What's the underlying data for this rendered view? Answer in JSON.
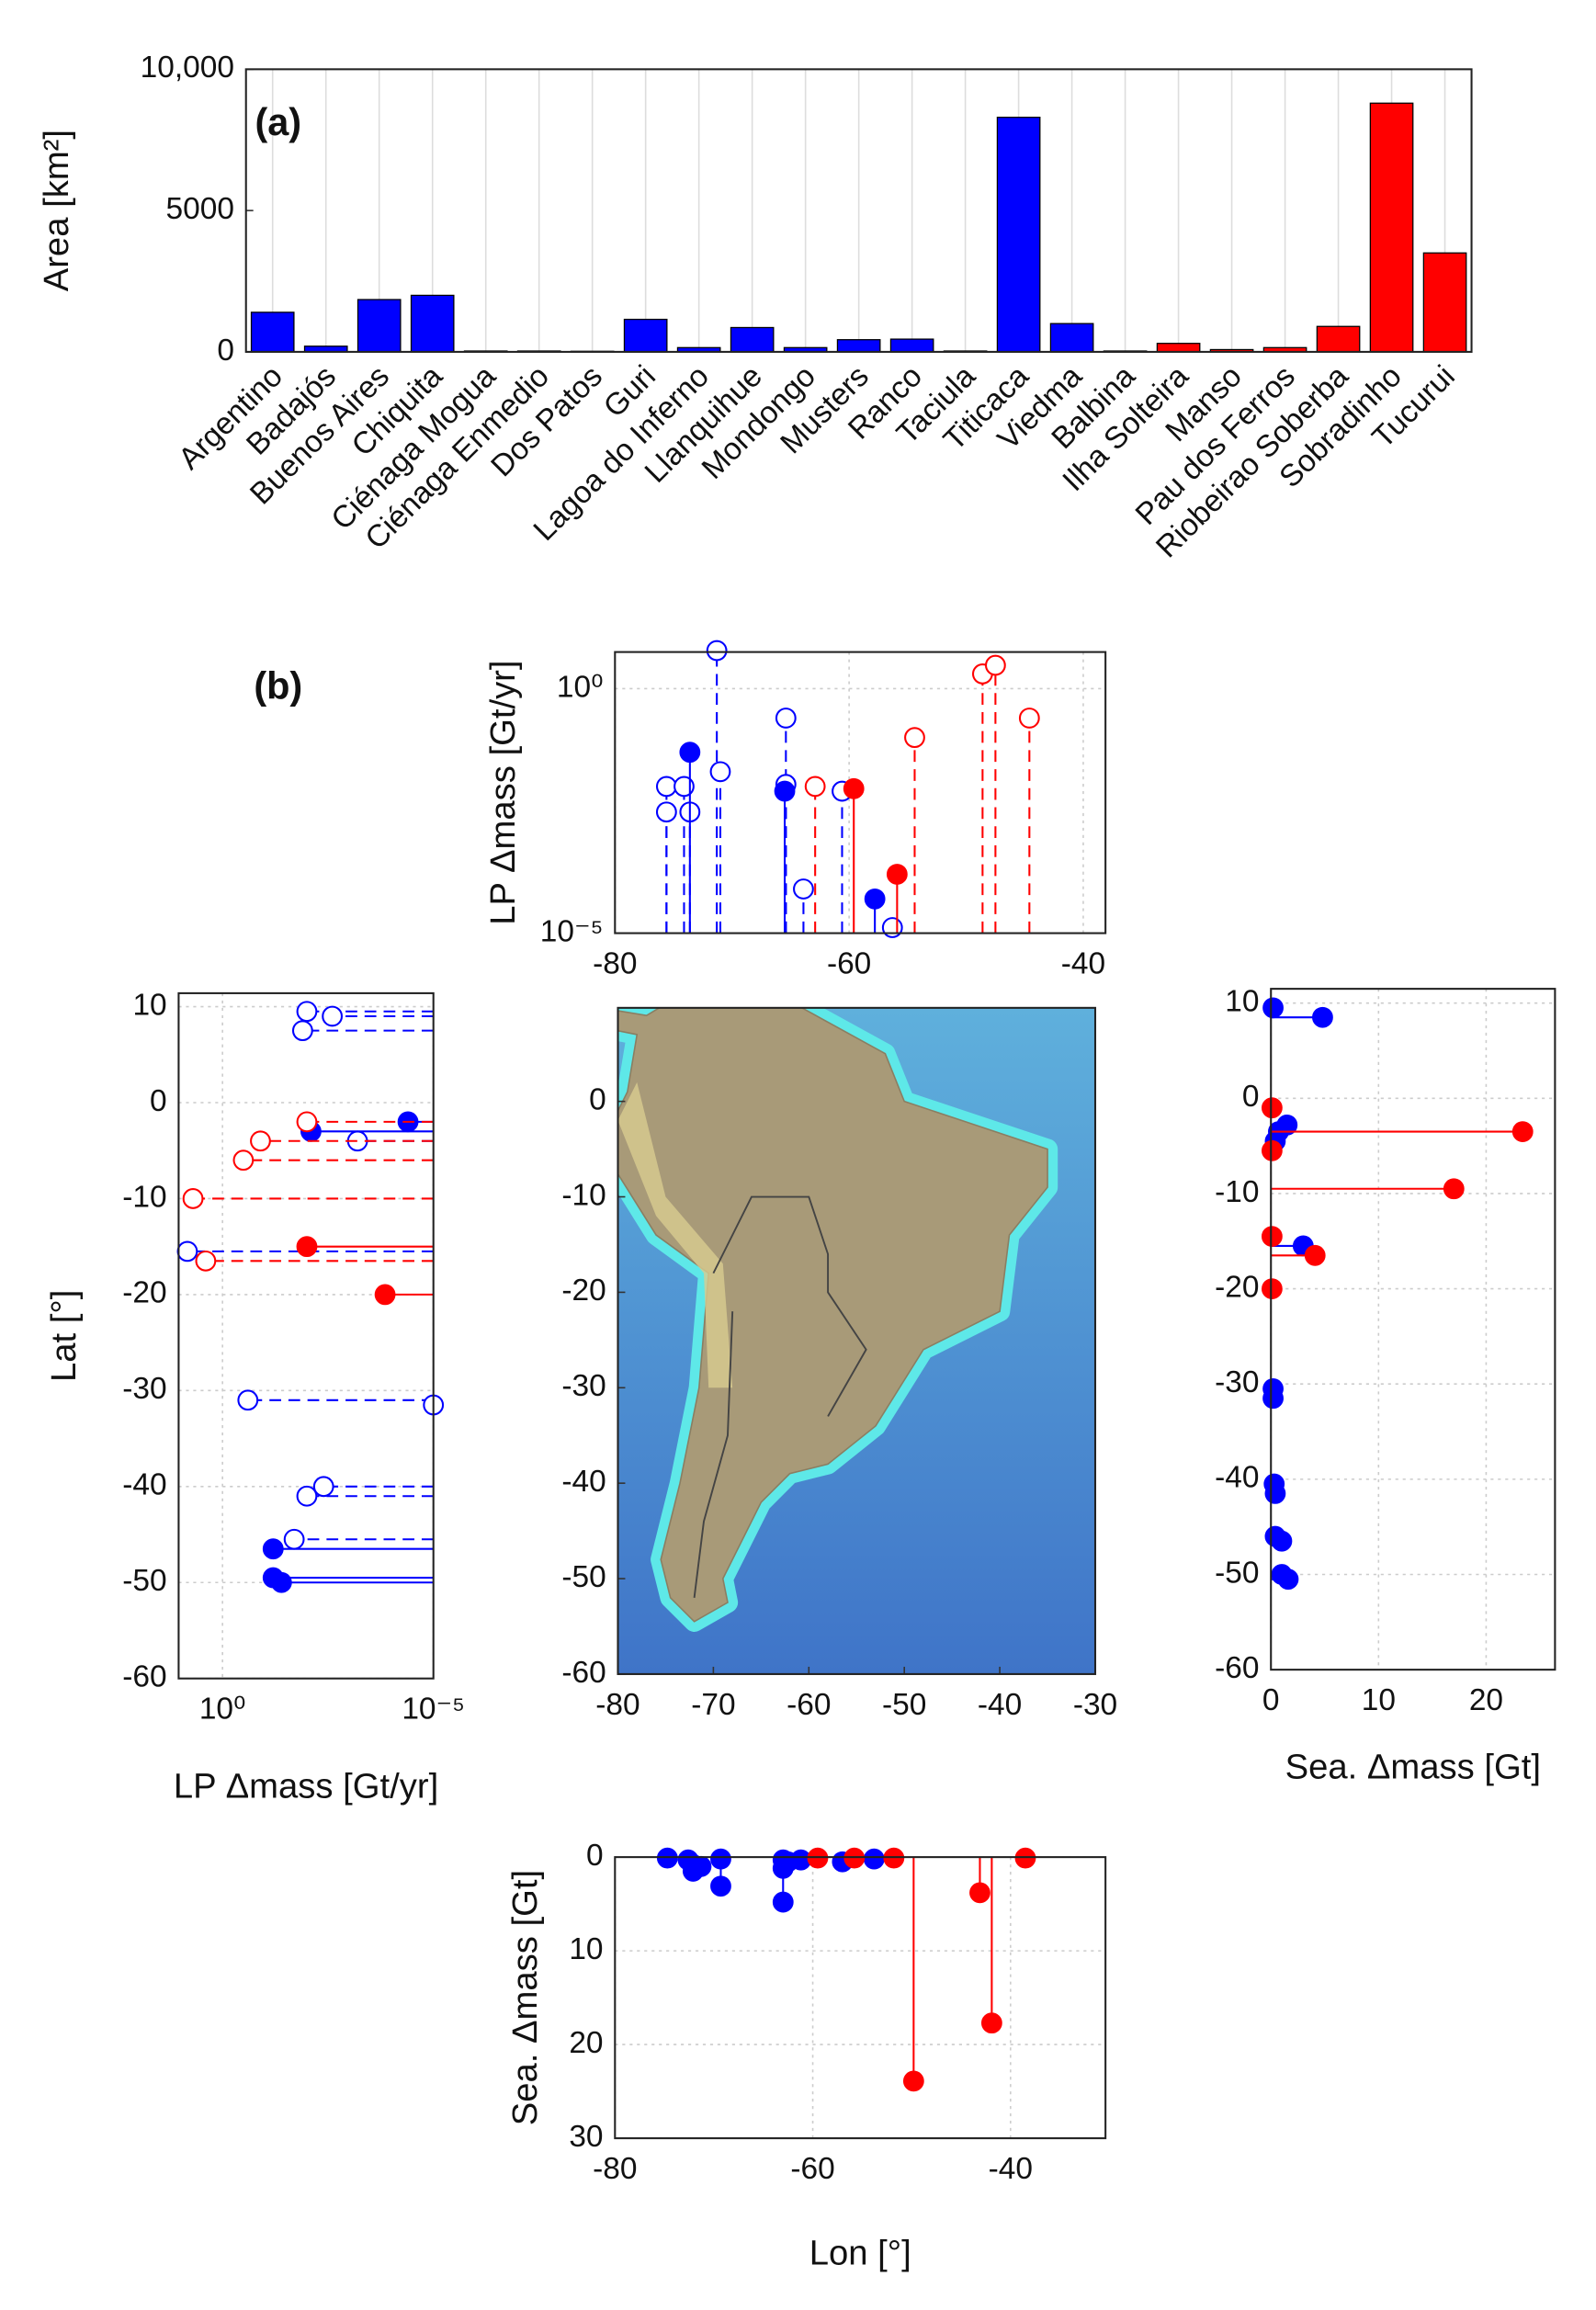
{
  "chart_data": [
    {
      "type": "bar",
      "panel": "(a)",
      "ylabel": "Area [km²]",
      "categories": [
        "Argentino",
        "Badajós",
        "Buenos Aires",
        "Chiquita",
        "Ciénaga Mogua",
        "Ciénaga Enmedio",
        "Dos Patos",
        "Guri",
        "Lagoa do Inferno",
        "Llanquihue",
        "Mondongo",
        "Musters",
        "Ranco",
        "Taciula",
        "Titicaca",
        "Viedma",
        "Balbina",
        "Ilha Solteira",
        "Manso",
        "Pau dos Ferros",
        "Riobeirao Soberba",
        "Sobradinho",
        "Tucurui"
      ],
      "values": [
        1400,
        200,
        1850,
        2000,
        30,
        30,
        20,
        1150,
        150,
        860,
        150,
        430,
        450,
        30,
        8300,
        1000,
        30,
        300,
        80,
        150,
        900,
        8800,
        3500
      ],
      "colors": [
        "#0000ff",
        "#0000ff",
        "#0000ff",
        "#0000ff",
        "#0000ff",
        "#0000ff",
        "#0000ff",
        "#0000ff",
        "#0000ff",
        "#0000ff",
        "#0000ff",
        "#0000ff",
        "#0000ff",
        "#0000ff",
        "#0000ff",
        "#0000ff",
        "#ff0000",
        "#ff0000",
        "#ff0000",
        "#ff0000",
        "#ff0000",
        "#ff0000",
        "#ff0000"
      ],
      "ylim": [
        0,
        10000
      ],
      "yticks": [
        0,
        5000,
        {
          "value": 10000,
          "label": "10,000"
        }
      ],
      "grid": true
    },
    {
      "type": "stem",
      "orientation": "vertical",
      "panel": "(b)",
      "ylabel": "LP Δmass [Gt/yr]",
      "ylog": true,
      "xlim": [
        -80,
        -38.1
      ],
      "xticks": [
        -80,
        -60,
        -40
      ],
      "ylim": [
        1e-05,
        5.6
      ],
      "yticks": [
        {
          "value": 1,
          "label": "10⁰"
        },
        {
          "value": 1e-05,
          "label": "10⁻⁵"
        }
      ],
      "grid": true,
      "series": [
        {
          "color": "#0000ff",
          "marker": "open",
          "x": [
            -75.6,
            -75.6,
            -74.1,
            -73.6,
            -71.3,
            -71,
            -65.4,
            -65.4,
            -63.9,
            -60.6,
            -56.3
          ],
          "values": [
            0.01,
            0.003,
            0.01,
            0.003,
            6,
            0.02,
            0.25,
            0.011,
            8e-05,
            0.008,
            1.3e-05
          ]
        },
        {
          "color": "#0000ff",
          "marker": "filled",
          "x": [
            -73.6,
            -65.5,
            -57.8
          ],
          "values": [
            0.05,
            0.008,
            5e-05
          ]
        },
        {
          "color": "#ff0000",
          "marker": "open",
          "x": [
            -62.9,
            -54.4,
            -48.6,
            -47.5,
            -44.6
          ],
          "values": [
            0.01,
            0.1,
            2,
            3,
            0.25
          ]
        },
        {
          "color": "#ff0000",
          "marker": "filled",
          "x": [
            -59.6,
            -55.9
          ],
          "values": [
            0.009,
            0.00016
          ]
        }
      ]
    },
    {
      "type": "stem",
      "orientation": "horizontal",
      "xlabel": "LP Δmass [Gt/yr]",
      "ylabel": "Lat [°]",
      "xlog": true,
      "xlim": [
        10.96,
        1e-05
      ],
      "xticks": [
        {
          "value": 1,
          "label": "10⁰"
        },
        {
          "value": 1e-05,
          "label": "10⁻⁵"
        }
      ],
      "ylim": [
        -60,
        11.4
      ],
      "yticks": [
        10,
        0,
        -10,
        -20,
        -30,
        -40,
        -50,
        -60
      ],
      "grid": true,
      "series": [
        {
          "color": "#0000ff",
          "marker": "open",
          "y": [
            9.5,
            7.5,
            9,
            -4,
            -15.5,
            -31,
            -31.5,
            -41,
            -40,
            -45.5
          ],
          "values": [
            0.01,
            0.0126,
            0.0025,
            0.00063,
            6.8,
            0.25,
            1e-05,
            0.01,
            0.004,
            0.02
          ]
        },
        {
          "color": "#0000ff",
          "marker": "filled",
          "y": [
            -2,
            -3,
            -46.5,
            -49.5,
            -50
          ],
          "values": [
            4e-05,
            0.008,
            0.063,
            0.063,
            0.04
          ]
        },
        {
          "color": "#ff0000",
          "marker": "open",
          "y": [
            -2,
            -4,
            -6,
            -10,
            -16.5
          ],
          "values": [
            0.01,
            0.126,
            0.32,
            5,
            2.5
          ]
        },
        {
          "color": "#ff0000",
          "marker": "filled",
          "y": [
            -15,
            -20
          ],
          "values": [
            0.01,
            0.00014
          ]
        }
      ]
    },
    {
      "type": "map",
      "xlim": [
        -80,
        -30
      ],
      "xticks": [
        -80,
        -70,
        -60,
        -50,
        -40,
        -30
      ],
      "ylim": [
        -60,
        9.8
      ],
      "yticks": [
        0,
        -10,
        -20,
        -30,
        -40,
        -50,
        -60
      ]
    },
    {
      "type": "stem",
      "orientation": "horizontal",
      "xlabel": "Sea. Δmass [Gt]",
      "xlim": [
        0,
        26.4
      ],
      "xticks": [
        0,
        10,
        20
      ],
      "ylim": [
        -60,
        11.5
      ],
      "yticks": [
        10,
        0,
        -10,
        -20,
        -30,
        -40,
        -50,
        -60
      ],
      "grid": true,
      "series": [
        {
          "color": "#0000ff",
          "marker": "filled",
          "y": [
            9.5,
            8.5,
            -3.5,
            -2.8,
            -4.5,
            -15.5,
            -30.5,
            -31.5,
            -40.5,
            -41.5,
            -46,
            -46.5,
            -50,
            -50.5
          ],
          "values": [
            0.2,
            4.8,
            0.7,
            1.5,
            0.4,
            3,
            0.2,
            0.2,
            0.3,
            0.4,
            0.4,
            1,
            1,
            1.6
          ]
        },
        {
          "color": "#ff0000",
          "marker": "filled",
          "y": [
            -1,
            -3.5,
            -5.5,
            -9.5,
            -14.5,
            -16.5,
            -20
          ],
          "values": [
            0.1,
            23.4,
            0.1,
            17,
            0.1,
            4.1,
            0.1
          ]
        }
      ]
    },
    {
      "type": "stem",
      "orientation": "vertical",
      "xlabel": "Lon [°]",
      "ylabel": "Sea. Δmass [Gt]",
      "xlim": [
        -80,
        -30.4
      ],
      "xticks": [
        -80,
        -60,
        -40
      ],
      "ylim": [
        30,
        0
      ],
      "yticks": [
        0,
        10,
        20,
        30
      ],
      "grid": true,
      "series": [
        {
          "color": "#0000ff",
          "marker": "filled",
          "x": [
            -74.7,
            -72.6,
            -72.1,
            -72.1,
            -71.3,
            -69.3,
            -69.3,
            -63,
            -63,
            -63,
            -62.5,
            -61.2,
            -57,
            -53.8
          ],
          "values": [
            0.1,
            0.3,
            0.8,
            1.5,
            1,
            0.2,
            3.1,
            0.3,
            1.2,
            4.8,
            0.5,
            0.3,
            0.5,
            0.2
          ]
        },
        {
          "color": "#ff0000",
          "marker": "filled",
          "x": [
            -59.5,
            -55.8,
            -51.8,
            -49.8,
            -43.1,
            -41.9,
            -38.5
          ],
          "values": [
            0.1,
            0.1,
            0.1,
            23.9,
            3.8,
            17.7,
            0.1
          ]
        }
      ]
    }
  ]
}
